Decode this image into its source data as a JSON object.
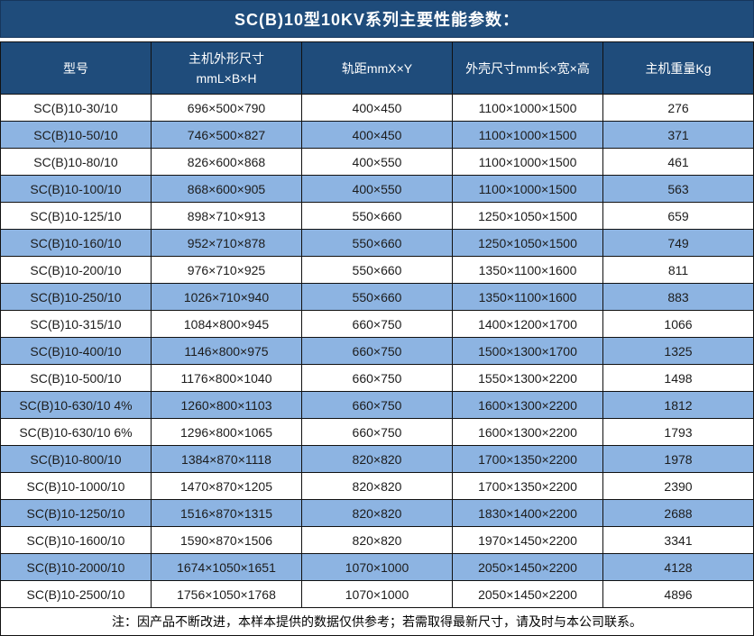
{
  "title": "SC(B)10型10KV系列主要性能参数：",
  "note": "注：因产品不断改进，本样本提供的数据仅供参考；若需取得最新尺寸，请及时与本公司联系。",
  "colors": {
    "header_bg": "#1F4C7B",
    "row_alt_bg": "#8DB4E2",
    "row_bg": "#FFFFFF",
    "border": "#111111",
    "header_text": "#FFFFFF",
    "body_text": "#1C1C1C"
  },
  "table": {
    "columns": [
      {
        "label": "型号"
      },
      {
        "label": "主机外形尺寸",
        "label2": "mmL×B×H"
      },
      {
        "label": "轨距mmX×Y"
      },
      {
        "label": "外壳尺寸mm长×宽×高"
      },
      {
        "label": "主机重量Kg"
      }
    ],
    "rows": [
      [
        "SC(B)10-30/10",
        "696×500×790",
        "400×450",
        "1100×1000×1500",
        "276"
      ],
      [
        "SC(B)10-50/10",
        "746×500×827",
        "400×450",
        "1100×1000×1500",
        "371"
      ],
      [
        "SC(B)10-80/10",
        "826×600×868",
        "400×550",
        "1100×1000×1500",
        "461"
      ],
      [
        "SC(B)10-100/10",
        "868×600×905",
        "400×550",
        "1100×1000×1500",
        "563"
      ],
      [
        "SC(B)10-125/10",
        "898×710×913",
        "550×660",
        "1250×1050×1500",
        "659"
      ],
      [
        "SC(B)10-160/10",
        "952×710×878",
        "550×660",
        "1250×1050×1500",
        "749"
      ],
      [
        "SC(B)10-200/10",
        "976×710×925",
        "550×660",
        "1350×1100×1600",
        "811"
      ],
      [
        "SC(B)10-250/10",
        "1026×710×940",
        "550×660",
        "1350×1100×1600",
        "883"
      ],
      [
        "SC(B)10-315/10",
        "1084×800×945",
        "660×750",
        "1400×1200×1700",
        "1066"
      ],
      [
        "SC(B)10-400/10",
        "1146×800×975",
        "660×750",
        "1500×1300×1700",
        "1325"
      ],
      [
        "SC(B)10-500/10",
        "1176×800×1040",
        "660×750",
        "1550×1300×2200",
        "1498"
      ],
      [
        "SC(B)10-630/10 4%",
        "1260×800×1103",
        "660×750",
        "1600×1300×2200",
        "1812"
      ],
      [
        "SC(B)10-630/10 6%",
        "1296×800×1065",
        "660×750",
        "1600×1300×2200",
        "1793"
      ],
      [
        "SC(B)10-800/10",
        "1384×870×1118",
        "820×820",
        "1700×1350×2200",
        "1978"
      ],
      [
        "SC(B)10-1000/10",
        "1470×870×1205",
        "820×820",
        "1700×1350×2200",
        "2390"
      ],
      [
        "SC(B)10-1250/10",
        "1516×870×1315",
        "820×820",
        "1830×1400×2200",
        "2688"
      ],
      [
        "SC(B)10-1600/10",
        "1590×870×1506",
        "820×820",
        "1970×1450×2200",
        "3341"
      ],
      [
        "SC(B)10-2000/10",
        "1674×1050×1651",
        "1070×1000",
        "2050×1450×2200",
        "4128"
      ],
      [
        "SC(B)10-2500/10",
        "1756×1050×1768",
        "1070×1000",
        "2050×1450×2200",
        "4896"
      ]
    ]
  }
}
